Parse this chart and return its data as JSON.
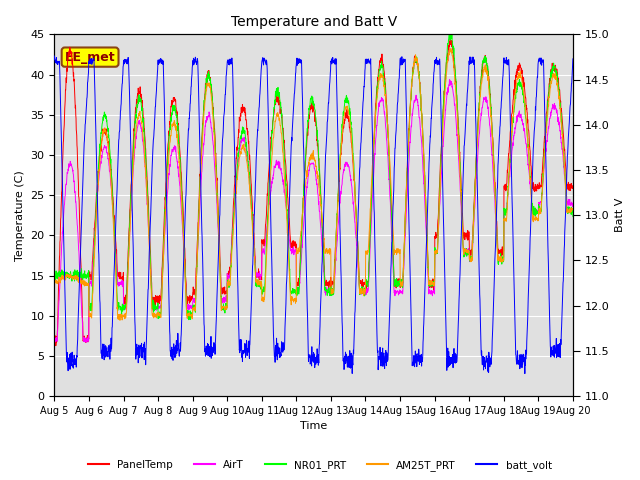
{
  "title": "Temperature and Batt V",
  "xlabel": "Time",
  "ylabel_left": "Temperature (C)",
  "ylabel_right": "Batt V",
  "annotation": "EE_met",
  "ylim_left": [
    0,
    45
  ],
  "ylim_right": [
    11.0,
    15.0
  ],
  "xtick_labels": [
    "Aug 5",
    "Aug 6",
    "Aug 7",
    "Aug 8",
    "Aug 9",
    "Aug 10",
    "Aug 11",
    "Aug 12",
    "Aug 13",
    "Aug 14",
    "Aug 15",
    "Aug 16",
    "Aug 17",
    "Aug 18",
    "Aug 19",
    "Aug 20"
  ],
  "yticks_left": [
    0,
    5,
    10,
    15,
    20,
    25,
    30,
    35,
    40,
    45
  ],
  "yticks_right": [
    11.0,
    11.5,
    12.0,
    12.5,
    13.0,
    13.5,
    14.0,
    14.5,
    15.0
  ],
  "colors": {
    "PanelTemp": "#ff0000",
    "AirT": "#ff00ff",
    "NR01_PRT": "#00ff00",
    "AM25T_PRT": "#ff9900",
    "batt_volt": "#0000ff"
  },
  "background_color": "#ffffff",
  "plot_bg_color": "#e0e0e0",
  "grid_color": "#ffffff",
  "annotation_bg": "#ffff00",
  "annotation_border": "#8b4513",
  "annotation_text_color": "#8b0000",
  "n_days": 15,
  "figsize": [
    6.4,
    4.8
  ],
  "dpi": 100
}
